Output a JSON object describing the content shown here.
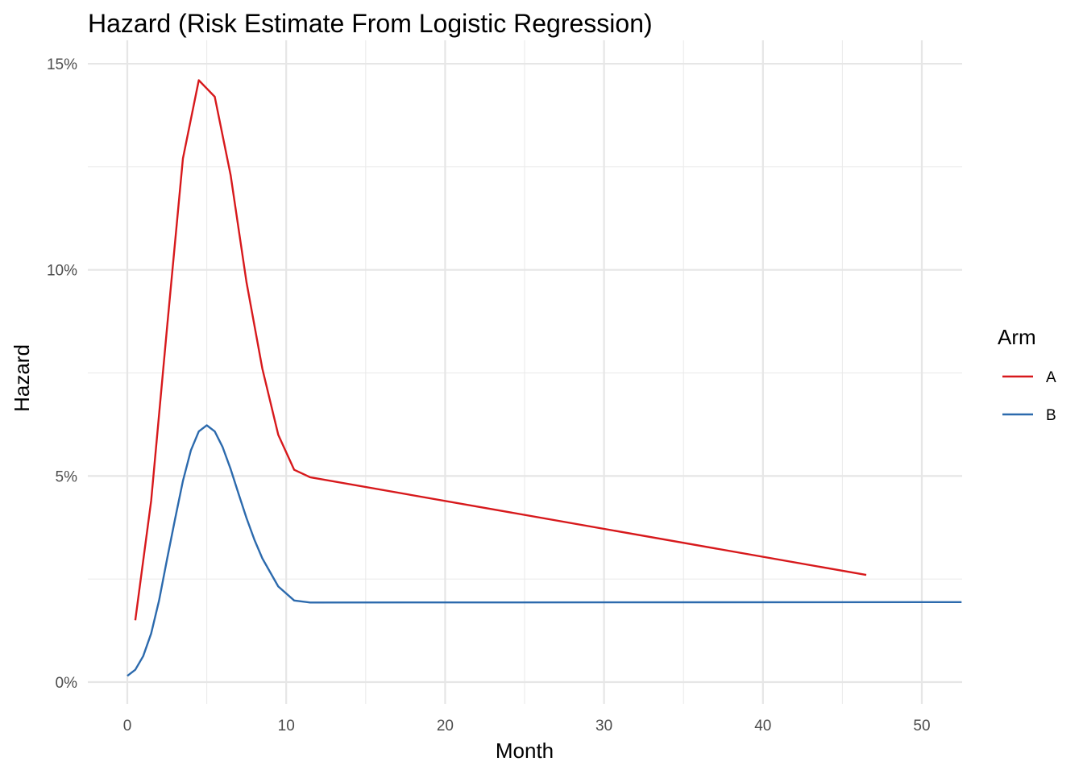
{
  "chart_data": {
    "type": "line",
    "title": "Hazard (Risk Estimate From Logistic Regression)",
    "xlabel": "Month",
    "ylabel": "Hazard",
    "xlim": [
      0,
      52.5
    ],
    "ylim": [
      0,
      0.15
    ],
    "x_ticks": [
      0,
      10,
      20,
      30,
      40,
      50
    ],
    "x_tick_labels": [
      "0",
      "10",
      "20",
      "30",
      "40",
      "50"
    ],
    "y_ticks": [
      0,
      0.05,
      0.1,
      0.15
    ],
    "y_tick_labels": [
      "0%",
      "5%",
      "10%",
      "15%"
    ],
    "grid": true,
    "legend": {
      "title": "Arm",
      "position": "right"
    },
    "series": [
      {
        "name": "A",
        "color": "#d7191c",
        "points": [
          [
            0.5,
            0.015
          ],
          [
            1.5,
            0.044
          ],
          [
            2.5,
            0.086
          ],
          [
            3.5,
            0.127
          ],
          [
            4.5,
            0.146
          ],
          [
            5.5,
            0.142
          ],
          [
            6.5,
            0.123
          ],
          [
            7.5,
            0.097
          ],
          [
            8.5,
            0.076
          ],
          [
            9.5,
            0.06
          ],
          [
            10.5,
            0.0515
          ],
          [
            11.5,
            0.0497
          ],
          [
            46.5,
            0.026
          ]
        ]
      },
      {
        "name": "B",
        "color": "#2c6aad",
        "points": [
          [
            0,
            0.0015
          ],
          [
            0.5,
            0.003
          ],
          [
            1,
            0.0063
          ],
          [
            1.5,
            0.0118
          ],
          [
            2,
            0.0198
          ],
          [
            2.5,
            0.0298
          ],
          [
            3,
            0.0395
          ],
          [
            3.5,
            0.0488
          ],
          [
            4,
            0.0562
          ],
          [
            4.5,
            0.0608
          ],
          [
            5,
            0.0623
          ],
          [
            5.5,
            0.0608
          ],
          [
            6,
            0.057
          ],
          [
            6.5,
            0.0517
          ],
          [
            7,
            0.0457
          ],
          [
            7.5,
            0.0398
          ],
          [
            8,
            0.0345
          ],
          [
            8.5,
            0.03
          ],
          [
            9.5,
            0.0232
          ],
          [
            10.5,
            0.0198
          ],
          [
            11.5,
            0.0193
          ],
          [
            52.5,
            0.0194
          ]
        ]
      }
    ]
  }
}
